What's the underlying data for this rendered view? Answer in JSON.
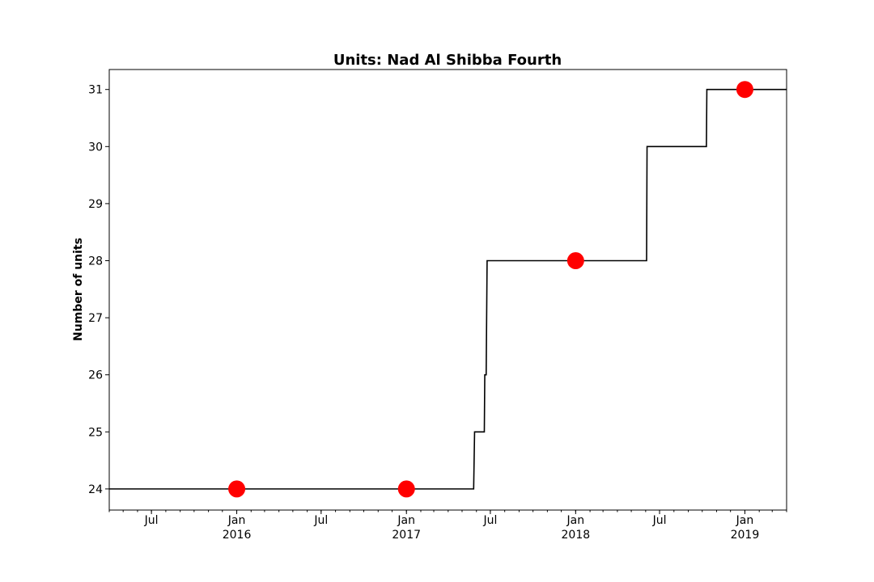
{
  "chart_data": {
    "type": "line",
    "title": "Units: Nad Al Shibba Fourth",
    "xlabel": "",
    "ylabel": "Number of units",
    "x_axis_type": "date",
    "xlim": [
      "2015-04-01",
      "2019-04-01"
    ],
    "ylim": [
      23.63,
      31.35
    ],
    "yticks": [
      24,
      25,
      26,
      27,
      28,
      29,
      30,
      31
    ],
    "major_xticks": [
      {
        "date": "2015-07-01",
        "label": "Jul",
        "year_label": ""
      },
      {
        "date": "2016-01-01",
        "label": "Jan",
        "year_label": "2016"
      },
      {
        "date": "2016-07-01",
        "label": "Jul",
        "year_label": ""
      },
      {
        "date": "2017-01-01",
        "label": "Jan",
        "year_label": "2017"
      },
      {
        "date": "2017-07-01",
        "label": "Jul",
        "year_label": ""
      },
      {
        "date": "2018-01-01",
        "label": "Jan",
        "year_label": "2018"
      },
      {
        "date": "2018-07-01",
        "label": "Jul",
        "year_label": ""
      },
      {
        "date": "2019-01-01",
        "label": "Jan",
        "year_label": "2019"
      }
    ],
    "minor_xticks": "monthly",
    "grid": false,
    "series": [
      {
        "kind": "step",
        "color": "#000000",
        "points": [
          {
            "x": "2015-04-01",
            "y": 24
          },
          {
            "x": "2017-05-26",
            "y": 24
          },
          {
            "x": "2017-05-28",
            "y": 25
          },
          {
            "x": "2017-06-18",
            "y": 25
          },
          {
            "x": "2017-06-19",
            "y": 26
          },
          {
            "x": "2017-06-22",
            "y": 26
          },
          {
            "x": "2017-06-24",
            "y": 28
          },
          {
            "x": "2018-06-03",
            "y": 28
          },
          {
            "x": "2018-06-04",
            "y": 30
          },
          {
            "x": "2018-10-10",
            "y": 30
          },
          {
            "x": "2018-10-11",
            "y": 31
          },
          {
            "x": "2019-04-01",
            "y": 31
          }
        ]
      },
      {
        "kind": "markers",
        "color": "#ff0000",
        "points": [
          {
            "x": "2016-01-01",
            "y": 24
          },
          {
            "x": "2017-01-01",
            "y": 24
          },
          {
            "x": "2018-01-01",
            "y": 28
          },
          {
            "x": "2019-01-01",
            "y": 31
          }
        ]
      }
    ]
  }
}
